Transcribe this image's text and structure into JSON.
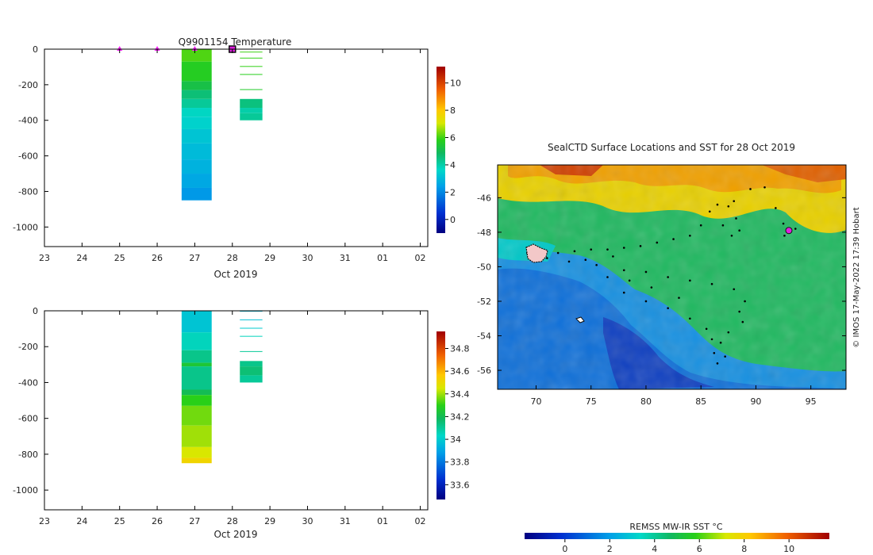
{
  "chart_data": [
    {
      "id": "temperature-profile",
      "type": "heatmap",
      "title": "Q9901154  Temperature",
      "xlabel": "Oct 2019",
      "x_tick_labels": [
        "23",
        "24",
        "25",
        "26",
        "27",
        "28",
        "29",
        "30",
        "31",
        "01",
        "02"
      ],
      "x_range_days": [
        23,
        33.2
      ],
      "ylabel": "",
      "y_tick_values": [
        0,
        -200,
        -400,
        -600,
        -800,
        -1000
      ],
      "y_tick_labels": [
        "0",
        "-200",
        "-400",
        "-600",
        "-800",
        "-1000"
      ],
      "ylim": [
        -1110,
        0
      ],
      "colorbar": {
        "min": -1,
        "max": 11.2,
        "tick_values": [
          0,
          2,
          4,
          6,
          8,
          10
        ],
        "tick_labels": [
          "0",
          "2",
          "4",
          "6",
          "8",
          "10"
        ]
      },
      "markers": [
        {
          "day": 25.0,
          "kind": "triangle"
        },
        {
          "day": 26.0,
          "kind": "triangle"
        },
        {
          "day": 27.0,
          "kind": "triangle"
        },
        {
          "day": 28.0,
          "kind": "square"
        }
      ],
      "profiles": [
        {
          "day_start": 26.65,
          "day_end": 27.45,
          "cells": [
            {
              "d0": 0,
              "d1": 70,
              "v": 6.1
            },
            {
              "d0": 70,
              "d1": 180,
              "v": 5.7
            },
            {
              "d0": 180,
              "d1": 230,
              "v": 5.2
            },
            {
              "d0": 230,
              "d1": 280,
              "v": 4.6
            },
            {
              "d0": 280,
              "d1": 330,
              "v": 4.2
            },
            {
              "d0": 330,
              "d1": 380,
              "v": 3.7
            },
            {
              "d0": 380,
              "d1": 450,
              "v": 3.5
            },
            {
              "d0": 450,
              "d1": 530,
              "v": 3.2
            },
            {
              "d0": 530,
              "d1": 620,
              "v": 3.0
            },
            {
              "d0": 620,
              "d1": 700,
              "v": 2.8
            },
            {
              "d0": 700,
              "d1": 780,
              "v": 2.6
            },
            {
              "d0": 780,
              "d1": 850,
              "v": 2.3
            }
          ]
        },
        {
          "day_start": 28.2,
          "day_end": 28.8,
          "cells": [
            {
              "d0": 14,
              "d1": 18,
              "v": 6.0
            },
            {
              "d0": 48,
              "d1": 52,
              "v": 5.9
            },
            {
              "d0": 95,
              "d1": 99,
              "v": 5.9
            },
            {
              "d0": 140,
              "d1": 144,
              "v": 5.8
            },
            {
              "d0": 225,
              "d1": 229,
              "v": 5.6
            },
            {
              "d0": 280,
              "d1": 330,
              "v": 4.5
            },
            {
              "d0": 330,
              "d1": 360,
              "v": 4.0
            },
            {
              "d0": 360,
              "d1": 400,
              "v": 4.2
            }
          ]
        }
      ]
    },
    {
      "id": "salinity-profile",
      "type": "heatmap",
      "title": "",
      "xlabel": "Oct 2019",
      "x_tick_labels": [
        "23",
        "24",
        "25",
        "26",
        "27",
        "28",
        "29",
        "30",
        "31",
        "01",
        "02"
      ],
      "x_range_days": [
        23,
        33.2
      ],
      "ylabel": "",
      "y_tick_values": [
        0,
        -200,
        -400,
        -600,
        -800,
        -1000
      ],
      "y_tick_labels": [
        "0",
        "-200",
        "-400",
        "-600",
        "-800",
        "-1000"
      ],
      "ylim": [
        -1110,
        0
      ],
      "colorbar": {
        "min": 33.47,
        "max": 34.95,
        "tick_values": [
          33.6,
          33.8,
          34.0,
          34.2,
          34.4,
          34.6,
          34.8
        ],
        "tick_labels": [
          "33.6",
          "33.8",
          "34",
          "34.2",
          "34.4",
          "34.6",
          "34.8"
        ]
      },
      "profiles": [
        {
          "day_start": 26.65,
          "day_end": 27.45,
          "cells": [
            {
              "d0": 0,
              "d1": 120,
              "v": 33.98
            },
            {
              "d0": 120,
              "d1": 220,
              "v": 34.05
            },
            {
              "d0": 220,
              "d1": 290,
              "v": 34.12
            },
            {
              "d0": 290,
              "d1": 310,
              "v": 34.25
            },
            {
              "d0": 310,
              "d1": 440,
              "v": 34.12
            },
            {
              "d0": 440,
              "d1": 470,
              "v": 34.2
            },
            {
              "d0": 470,
              "d1": 530,
              "v": 34.3
            },
            {
              "d0": 530,
              "d1": 640,
              "v": 34.36
            },
            {
              "d0": 640,
              "d1": 760,
              "v": 34.4
            },
            {
              "d0": 760,
              "d1": 820,
              "v": 34.45
            },
            {
              "d0": 820,
              "d1": 850,
              "v": 34.52
            }
          ]
        },
        {
          "day_start": 28.2,
          "day_end": 28.8,
          "cells": [
            {
              "d0": 0,
              "d1": 4,
              "v": 33.95
            },
            {
              "d0": 48,
              "d1": 52,
              "v": 33.97
            },
            {
              "d0": 95,
              "d1": 99,
              "v": 34.0
            },
            {
              "d0": 140,
              "d1": 144,
              "v": 34.05
            },
            {
              "d0": 225,
              "d1": 229,
              "v": 34.1
            },
            {
              "d0": 280,
              "d1": 310,
              "v": 34.12
            },
            {
              "d0": 310,
              "d1": 360,
              "v": 34.15
            },
            {
              "d0": 360,
              "d1": 400,
              "v": 34.1
            }
          ]
        }
      ]
    },
    {
      "id": "sst-map",
      "type": "heatmap",
      "title": "SealCTD Surface Locations and SST for 28 Oct 2019",
      "xlabel": "",
      "ylabel": "",
      "xlim": [
        66.5,
        98.2
      ],
      "ylim": [
        -57.1,
        -44.1
      ],
      "x_tick_values": [
        70,
        75,
        80,
        85,
        90,
        95
      ],
      "x_tick_labels": [
        "70",
        "75",
        "80",
        "85",
        "90",
        "95"
      ],
      "y_tick_values": [
        -46,
        -48,
        -50,
        -52,
        -54,
        -56
      ],
      "y_tick_labels": [
        "-46",
        "-48",
        "-50",
        "-52",
        "-54",
        "-56"
      ],
      "colorbar": {
        "label": "REMSS MW-IR SST °C",
        "min": -1.8,
        "max": 11.8,
        "tick_values": [
          0,
          2,
          4,
          6,
          8,
          10
        ],
        "tick_labels": [
          "0",
          "2",
          "4",
          "6",
          "8",
          "10"
        ]
      },
      "credit": "©  IMOS 17-May-2022 17:39 Hobart",
      "current_location": {
        "lon": 93.0,
        "lat": -47.9
      }
    }
  ]
}
